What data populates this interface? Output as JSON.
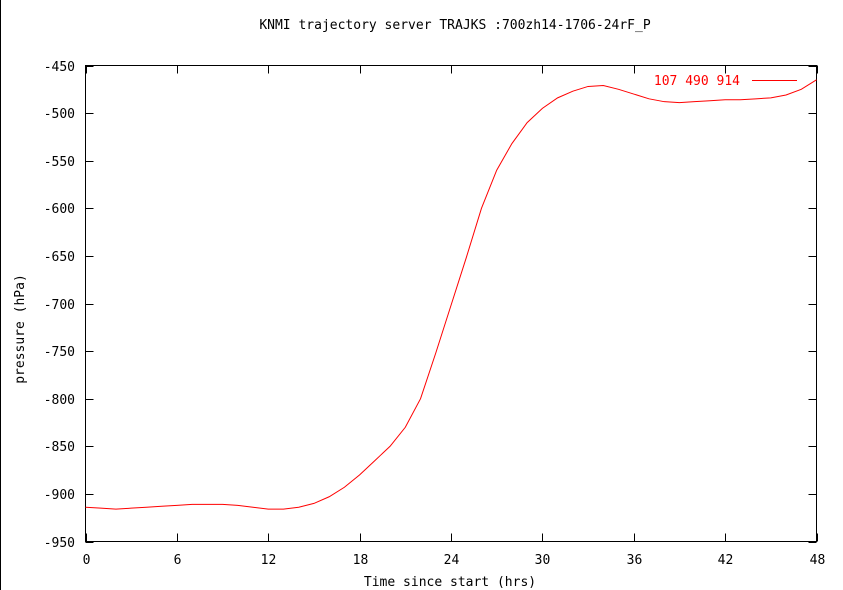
{
  "chart_data": {
    "type": "line",
    "title": "KNMI trajectory server TRAJKS :700zh14-1706-24rF_P",
    "xlabel": "Time since start (hrs)",
    "ylabel": "pressure (hPa)",
    "xlim": [
      0,
      48
    ],
    "ylim": [
      -950,
      -450
    ],
    "x_ticks": [
      0,
      6,
      12,
      18,
      24,
      30,
      36,
      42,
      48
    ],
    "x_tick_labels": [
      "0",
      "6",
      "12",
      "18",
      "24",
      "30",
      "36",
      "42",
      "48"
    ],
    "y_ticks": [
      -450,
      -500,
      -550,
      -600,
      -650,
      -700,
      -750,
      -800,
      -850,
      -900,
      -950
    ],
    "y_tick_labels": [
      "-450",
      "-500",
      "-550",
      "-600",
      "-650",
      "-700",
      "-750",
      "-800",
      "-850",
      "-900",
      "-950"
    ],
    "grid": false,
    "legend_position": "top-right",
    "series": [
      {
        "name": "107 490 914",
        "color": "#ff0000",
        "x": [
          0,
          1,
          2,
          3,
          4,
          5,
          6,
          7,
          8,
          9,
          10,
          11,
          12,
          13,
          14,
          15,
          16,
          17,
          18,
          19,
          20,
          21,
          22,
          23,
          24,
          25,
          26,
          27,
          28,
          29,
          30,
          31,
          32,
          33,
          34,
          35,
          36,
          37,
          38,
          39,
          40,
          41,
          42,
          43,
          44,
          45,
          46,
          47,
          48
        ],
        "values": [
          -914,
          -915,
          -916,
          -915,
          -914,
          -913,
          -912,
          -911,
          -911,
          -911,
          -912,
          -914,
          -916,
          -916,
          -914,
          -910,
          -903,
          -893,
          -880,
          -865,
          -850,
          -830,
          -800,
          -752,
          -702,
          -652,
          -600,
          -560,
          -532,
          -510,
          -495,
          -484,
          -477,
          -472,
          -471,
          -475,
          -480,
          -485,
          -488,
          -489,
          -488,
          -487,
          -486,
          -486,
          -485,
          -484,
          -481,
          -475,
          -465
        ]
      }
    ]
  }
}
